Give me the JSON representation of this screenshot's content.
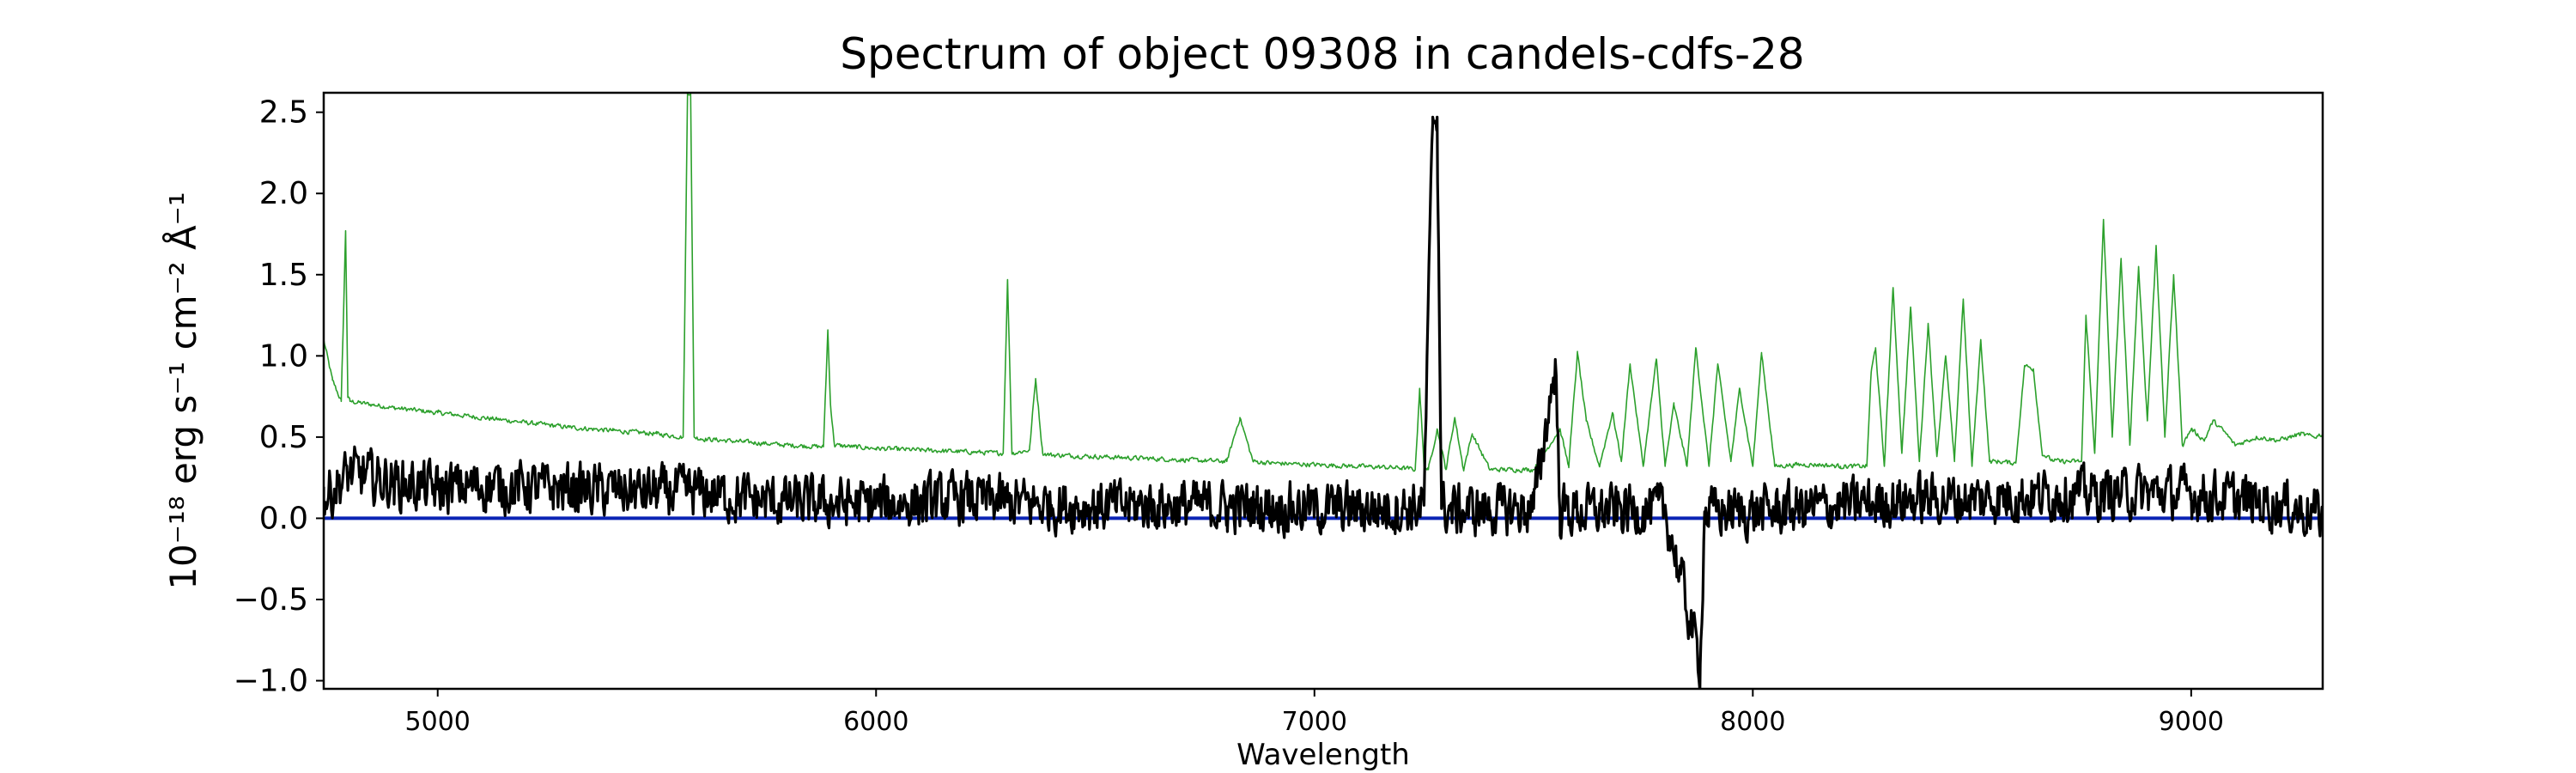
{
  "chart_data": {
    "type": "line",
    "title": "Spectrum of object 09308 in candels-cdfs-28",
    "xlabel": "Wavelength",
    "ylabel": "10⁻¹⁸ erg s⁻¹ cm⁻² Å⁻¹",
    "xlim": [
      4740,
      9300
    ],
    "ylim": [
      -1.05,
      2.62
    ],
    "x_ticks": [
      5000,
      6000,
      7000,
      8000,
      9000
    ],
    "y_ticks": [
      -1.0,
      -0.5,
      0.0,
      0.5,
      1.0,
      1.5,
      2.0,
      2.5
    ],
    "x_tick_labels": [
      "5000",
      "6000",
      "7000",
      "8000",
      "9000"
    ],
    "y_tick_labels": [
      "−1.0",
      "−0.5",
      "0.0",
      "0.5",
      "1.0",
      "1.5",
      "2.0",
      "2.5"
    ],
    "grid": false,
    "series": [
      {
        "style": "green thin line",
        "color": "#2ca02c",
        "x": [
          4740,
          4760,
          4780,
          4790,
          4795,
          4800,
          4850,
          4900,
          5000,
          5100,
          5200,
          5300,
          5400,
          5500,
          5560,
          5570,
          5577,
          5585,
          5600,
          5700,
          5800,
          5880,
          5890,
          5896,
          5905,
          5950,
          6000,
          6100,
          6200,
          6290,
          6300,
          6310,
          6350,
          6364,
          6380,
          6400,
          6500,
          6600,
          6700,
          6800,
          6830,
          6860,
          6900,
          7000,
          7100,
          7200,
          7230,
          7240,
          7250,
          7260,
          7280,
          7300,
          7320,
          7340,
          7360,
          7400,
          7500,
          7560,
          7580,
          7600,
          7620,
          7650,
          7680,
          7700,
          7720,
          7750,
          7780,
          7800,
          7820,
          7850,
          7870,
          7900,
          7920,
          7950,
          7970,
          8000,
          8020,
          8050,
          8100,
          8150,
          8200,
          8260,
          8270,
          8280,
          8300,
          8320,
          8340,
          8360,
          8380,
          8400,
          8420,
          8440,
          8460,
          8480,
          8500,
          8520,
          8540,
          8560,
          8600,
          8620,
          8640,
          8660,
          8680,
          8700,
          8750,
          8760,
          8780,
          8800,
          8820,
          8840,
          8860,
          8880,
          8900,
          8920,
          8940,
          8960,
          8980,
          9000,
          9030,
          9050,
          9080,
          9100,
          9150,
          9200,
          9250,
          9280,
          9300
        ],
        "y": [
          1.1,
          0.85,
          0.72,
          1.77,
          0.75,
          0.72,
          0.7,
          0.68,
          0.65,
          0.62,
          0.59,
          0.56,
          0.54,
          0.52,
          0.5,
          2.62,
          2.62,
          0.5,
          0.49,
          0.47,
          0.45,
          0.44,
          1.16,
          0.7,
          0.45,
          0.44,
          0.43,
          0.42,
          0.41,
          0.4,
          1.47,
          0.4,
          0.42,
          0.86,
          0.4,
          0.39,
          0.38,
          0.37,
          0.36,
          0.35,
          0.62,
          0.35,
          0.34,
          0.33,
          0.32,
          0.31,
          0.3,
          0.8,
          0.32,
          0.3,
          0.55,
          0.3,
          0.62,
          0.3,
          0.52,
          0.3,
          0.3,
          0.55,
          0.32,
          1.02,
          0.6,
          0.32,
          0.65,
          0.35,
          0.95,
          0.32,
          0.98,
          0.32,
          0.7,
          0.32,
          1.05,
          0.32,
          0.95,
          0.35,
          0.8,
          0.32,
          1.02,
          0.32,
          0.33,
          0.33,
          0.32,
          0.32,
          0.9,
          1.05,
          0.32,
          1.42,
          0.4,
          1.3,
          0.35,
          1.2,
          0.38,
          1.0,
          0.35,
          1.35,
          0.32,
          1.1,
          0.35,
          0.35,
          0.34,
          0.94,
          0.92,
          0.4,
          0.36,
          0.35,
          0.35,
          1.25,
          0.4,
          1.84,
          0.5,
          1.6,
          0.45,
          1.55,
          0.6,
          1.68,
          0.5,
          1.5,
          0.45,
          0.55,
          0.48,
          0.6,
          0.52,
          0.45,
          0.5,
          0.48,
          0.52,
          0.5,
          0.52
        ],
        "noise_amplitude": 0.02
      },
      {
        "style": "blue zero line",
        "color": "#0b24b5",
        "x": [
          4740,
          9300
        ],
        "y": [
          0.0,
          0.0
        ]
      },
      {
        "style": "black spectrum",
        "color": "#000000",
        "x": [
          4740,
          4800,
          4900,
          5000,
          5100,
          5200,
          5300,
          5400,
          5500,
          5600,
          5700,
          5800,
          5900,
          6000,
          6100,
          6200,
          6300,
          6400,
          6500,
          6600,
          6700,
          6800,
          6900,
          7000,
          7100,
          7200,
          7250,
          7270,
          7280,
          7290,
          7310,
          7400,
          7500,
          7550,
          7560,
          7600,
          7700,
          7800,
          7880,
          7890,
          7900,
          8000,
          8100,
          8200,
          8300,
          8400,
          8500,
          8600,
          8700,
          8800,
          8900,
          9000,
          9100,
          9200,
          9300
        ],
        "y": [
          0.12,
          0.28,
          0.22,
          0.18,
          0.2,
          0.19,
          0.18,
          0.17,
          0.16,
          0.16,
          0.12,
          0.1,
          0.09,
          0.09,
          0.1,
          0.12,
          0.1,
          0.08,
          0.07,
          0.08,
          0.08,
          0.07,
          0.07,
          0.06,
          0.06,
          0.06,
          0.08,
          2.47,
          2.47,
          0.06,
          0.05,
          0.05,
          0.06,
          0.95,
          0.05,
          0.04,
          0.05,
          0.05,
          -0.9,
          0.04,
          0.04,
          0.04,
          0.06,
          0.08,
          0.1,
          0.12,
          0.12,
          0.13,
          0.15,
          0.15,
          0.16,
          0.15,
          0.12,
          0.08,
          0.02
        ],
        "noise_amplitude": 0.22
      }
    ]
  }
}
